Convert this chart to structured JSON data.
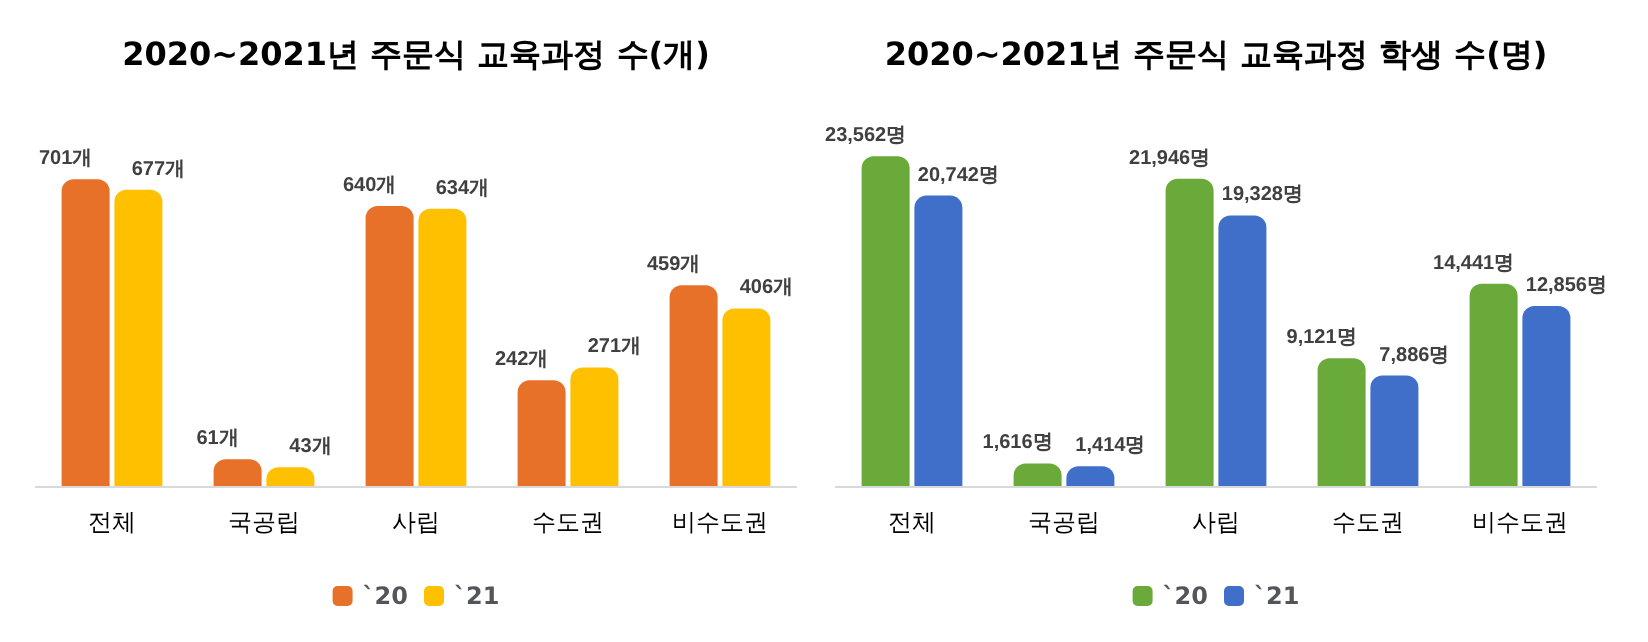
{
  "chart_data": [
    {
      "type": "bar",
      "title": "2020~2021년 주문식 교육과정 수(개)",
      "categories": [
        "전체",
        "국공립",
        "사립",
        "수도권",
        "비수도권"
      ],
      "legend": "bottom",
      "grid": false,
      "series": [
        {
          "name": "`20",
          "color": "#e8712a",
          "values": [
            701,
            61,
            640,
            242,
            459
          ],
          "value_labels": [
            "701개",
            "61개",
            "640개",
            "242개",
            "459개"
          ]
        },
        {
          "name": "`21",
          "color": "#ffc000",
          "values": [
            677,
            43,
            634,
            271,
            406
          ],
          "value_labels": [
            "677개",
            "43개",
            "634개",
            "271개",
            "406개"
          ]
        }
      ]
    },
    {
      "type": "bar",
      "title": "2020~2021년 주문식 교육과정 학생 수(명)",
      "categories": [
        "전체",
        "국공립",
        "사립",
        "수도권",
        "비수도권"
      ],
      "legend": "bottom",
      "grid": false,
      "series": [
        {
          "name": "`20",
          "color": "#6aaa3a",
          "values": [
            23562,
            1616,
            21946,
            9121,
            14441
          ],
          "value_labels": [
            "23,562명",
            "1,616명",
            "21,946명",
            "9,121명",
            "14,441명"
          ]
        },
        {
          "name": "`21",
          "color": "#3f6fc9",
          "values": [
            20742,
            1414,
            19328,
            7886,
            12856
          ],
          "value_labels": [
            "20,742명",
            "1,414명",
            "19,328명",
            "7,886명",
            "12,856명"
          ]
        }
      ]
    }
  ]
}
